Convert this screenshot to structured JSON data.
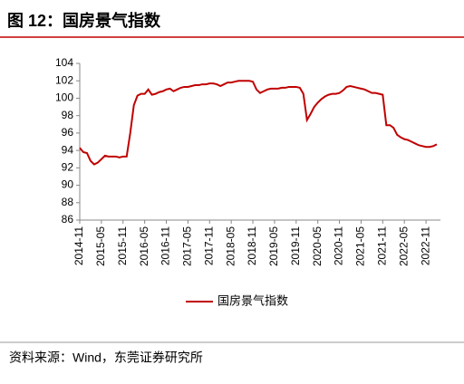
{
  "chart_data": {
    "type": "line",
    "title": "图 12：国房景气指数",
    "source": "资料来源：Wind，东莞证券研究所",
    "categories": [
      "2014-11",
      null,
      null,
      null,
      null,
      null,
      "2015-05",
      null,
      null,
      null,
      null,
      null,
      "2015-11",
      null,
      null,
      null,
      null,
      null,
      "2016-05",
      null,
      null,
      null,
      null,
      null,
      "2016-11",
      null,
      null,
      null,
      null,
      null,
      "2017-05",
      null,
      null,
      null,
      null,
      null,
      "2017-11",
      null,
      null,
      null,
      null,
      null,
      "2018-05",
      null,
      null,
      null,
      null,
      null,
      "2018-11",
      null,
      null,
      null,
      null,
      null,
      "2019-05",
      null,
      null,
      null,
      null,
      null,
      "2019-11",
      null,
      null,
      null,
      null,
      null,
      "2020-05",
      null,
      null,
      null,
      null,
      null,
      "2020-11",
      null,
      null,
      null,
      null,
      null,
      "2021-05",
      null,
      null,
      null,
      null,
      null,
      "2021-11",
      null,
      null,
      null,
      null,
      null,
      "2022-05",
      null,
      null,
      null,
      null,
      null,
      "2022-11",
      null,
      null,
      null
    ],
    "series": [
      {
        "name": "国房景气指数",
        "color": "#c00000",
        "values": [
          94.3,
          93.8,
          93.7,
          92.8,
          92.4,
          92.6,
          93.0,
          93.4,
          93.3,
          93.3,
          93.3,
          93.2,
          93.3,
          93.3,
          96.0,
          99.2,
          100.3,
          100.5,
          100.5,
          101.0,
          100.4,
          100.5,
          100.7,
          100.8,
          101.0,
          101.1,
          100.8,
          101.0,
          101.2,
          101.3,
          101.3,
          101.4,
          101.5,
          101.5,
          101.6,
          101.6,
          101.7,
          101.7,
          101.6,
          101.4,
          101.6,
          101.8,
          101.8,
          101.9,
          102.0,
          102.0,
          102.0,
          102.0,
          101.9,
          101.0,
          100.6,
          100.8,
          101.0,
          101.1,
          101.1,
          101.1,
          101.2,
          101.2,
          101.3,
          101.3,
          101.3,
          101.2,
          100.5,
          97.5,
          98.2,
          99.0,
          99.5,
          99.9,
          100.2,
          100.4,
          100.5,
          100.5,
          100.6,
          100.9,
          101.3,
          101.4,
          101.3,
          101.2,
          101.1,
          101.0,
          100.8,
          100.6,
          100.6,
          100.5,
          100.4,
          96.9,
          96.9,
          96.6,
          95.8,
          95.5,
          95.3,
          95.2,
          95.0,
          94.8,
          94.6,
          94.5,
          94.4,
          94.4,
          94.5,
          94.7
        ]
      }
    ],
    "ylim": [
      86,
      104
    ],
    "yticks": [
      86,
      88,
      90,
      92,
      94,
      96,
      98,
      100,
      102,
      104
    ],
    "grid": false,
    "legend": "bottom"
  }
}
